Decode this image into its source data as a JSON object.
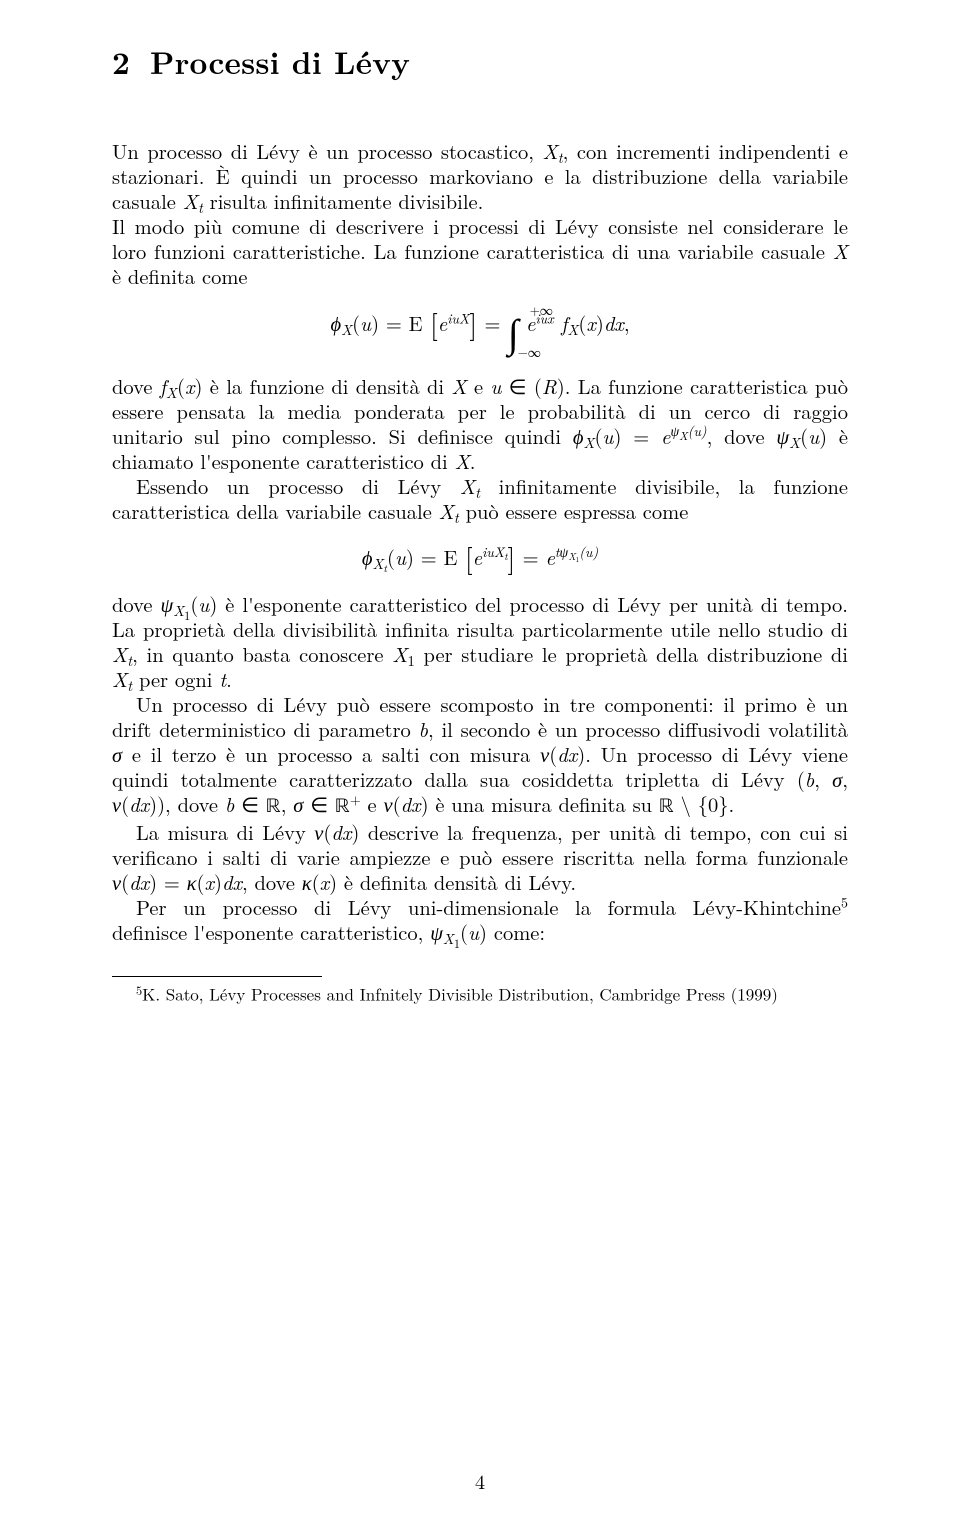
{
  "section": {
    "number": "2",
    "title": "Processi di Lévy"
  },
  "paragraphs": {
    "p1a": "Un processo di Lévy è un processo stocastico, ",
    "p1b": ", con incrementi indipendenti e stazionari. È quindi un processo markoviano e la distribuzione della variabile casuale ",
    "p1c": " risulta infinitamente divisibile.",
    "p2a": "Il modo più comune di descrivere i processi di Lévy consiste nel considerare le loro funzioni caratteristiche. La funzione caratteristica di una variabile casuale ",
    "p2b": " è definita come",
    "p3a": "dove ",
    "p3b": " è la funzione di densità di ",
    "p3c": ". La funzione caratteristica può essere pensata la media ponderata per le probabilità di un cerco di raggio unitario sul pino complesso. Si definisce quindi ",
    "p3d": ", dove ",
    "p3e": " è chiamato l'esponente caratteristico di ",
    "p3f": ".",
    "p4a": "Essendo un processo di Lévy ",
    "p4b": " infinitamente divisibile, la funzione caratteristica della variabile casuale ",
    "p4c": " può essere espressa come",
    "p5a": "dove ",
    "p5b": " è l'esponente caratteristico del processo di Lévy per unità di tempo. La proprietà della divisibilità infinita risulta particolarmente utile nello studio di ",
    "p5c": ", in quanto basta conoscere ",
    "p5d": " per studiare le proprietà della distribuzione di ",
    "p5e": " per ogni ",
    "p5f": ".",
    "p6a": "Un processo di Lévy può essere scomposto in tre componenti: il primo è un drift deterministico di parametro ",
    "p6b": ", il secondo è un processo diffusivodi volatilità ",
    "p6c": " e il terzo è un processo a salti con misura ",
    "p6d": ". Un processo di Lévy viene quindi totalmente caratterizzato dalla sua cosiddetta tripletta di Lévy ",
    "p6e": ", dove ",
    "p6f": " e ",
    "p6g": " è una misura definita su ",
    "p6h": ".",
    "p7a": "La misura di Lévy ",
    "p7b": " descrive la frequenza, per unità di tempo, con cui si verificano i salti di varie ampiezze e può essere riscritta nella forma funzionale ",
    "p7c": ", dove ",
    "p7d": " è definita densità di Lévy.",
    "p8a": "Per un processo di Lévy uni-dimensionale la formula Lévy-Khintchine",
    "p8b": " definisce l'esponente caratteristico, ",
    "p8c": " come:"
  },
  "footnote": {
    "marker": "5",
    "text": "K. Sato, Lévy Processes and Infnitely Divisible Distribution, Cambridge Press (1999)"
  },
  "pageNumber": "4"
}
